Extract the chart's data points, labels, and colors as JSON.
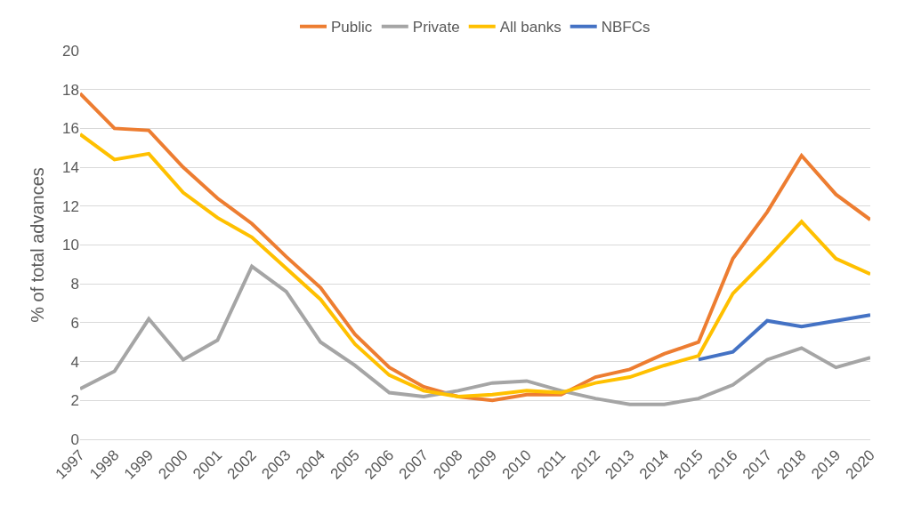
{
  "chart_data": {
    "type": "line",
    "ylabel": "% of total advances",
    "categories": [
      "1997",
      "1998",
      "1999",
      "2000",
      "2001",
      "2002",
      "2003",
      "2004",
      "2005",
      "2006",
      "2007",
      "2008",
      "2009",
      "2010",
      "2011",
      "2012",
      "2013",
      "2014",
      "2015",
      "2016",
      "2017",
      "2018",
      "2019",
      "2020"
    ],
    "series": [
      {
        "name": "Public",
        "color": "#ed7d31",
        "values": [
          17.8,
          16.0,
          15.9,
          14.0,
          12.4,
          11.1,
          9.4,
          7.8,
          5.4,
          3.7,
          2.7,
          2.2,
          2.0,
          2.3,
          2.3,
          3.2,
          3.6,
          4.4,
          5.0,
          9.3,
          11.7,
          14.6,
          12.6,
          11.3
        ]
      },
      {
        "name": "Private",
        "color": "#a5a5a5",
        "values": [
          2.6,
          3.5,
          6.2,
          4.1,
          5.1,
          8.9,
          7.6,
          5.0,
          3.8,
          2.4,
          2.2,
          2.5,
          2.9,
          3.0,
          2.5,
          2.1,
          1.8,
          1.8,
          2.1,
          2.8,
          4.1,
          4.7,
          3.7,
          4.2
        ]
      },
      {
        "name": "All banks",
        "color": "#ffc000",
        "values": [
          15.7,
          14.4,
          14.7,
          12.7,
          11.4,
          10.4,
          8.8,
          7.2,
          4.9,
          3.3,
          2.5,
          2.2,
          2.3,
          2.5,
          2.4,
          2.9,
          3.2,
          3.8,
          4.3,
          7.5,
          9.3,
          11.2,
          9.3,
          8.5
        ]
      },
      {
        "name": "NBFCs",
        "color": "#4472c4",
        "values": [
          null,
          null,
          null,
          null,
          null,
          null,
          null,
          null,
          null,
          null,
          null,
          null,
          null,
          null,
          null,
          null,
          null,
          null,
          4.1,
          4.5,
          6.1,
          5.8,
          6.1,
          6.4
        ]
      }
    ],
    "ylim": [
      0,
      20
    ],
    "yticks": [
      0,
      2,
      4,
      6,
      8,
      10,
      12,
      14,
      16,
      18,
      20
    ],
    "grid": "y",
    "legend": "top",
    "marker": "none",
    "line_style": "solid"
  }
}
